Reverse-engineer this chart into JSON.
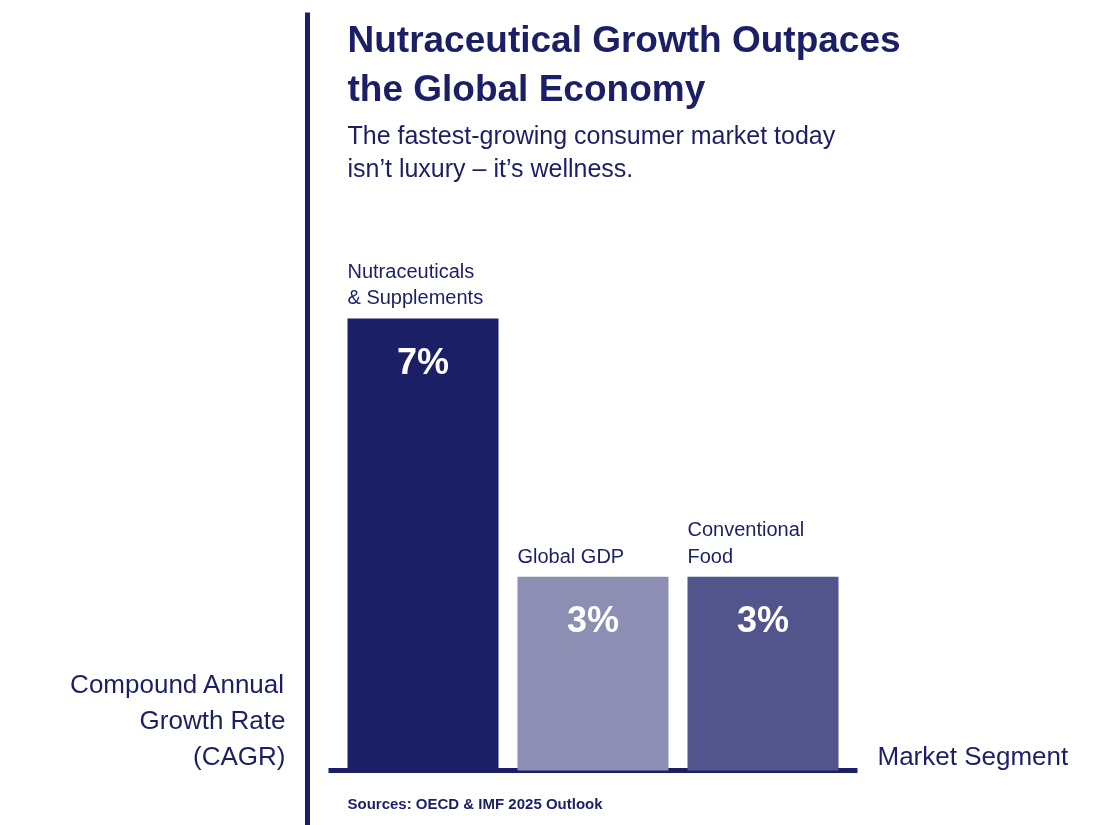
{
  "chart_data": {
    "type": "bar",
    "title": "Nutraceutical Growth Outpaces the Global Economy",
    "subtitle": "The fastest-growing consumer market today isn’t luxury – it’s wellness.",
    "xlabel": "Market Segment",
    "ylabel": "Compound Annual Growth Rate (CAGR)",
    "categories": [
      "Nutraceuticals & Supplements",
      "Global GDP",
      "Conventional Food"
    ],
    "values": [
      7,
      3,
      3
    ],
    "colors": [
      "#1b1f66",
      "#8c8fb3",
      "#52558c"
    ],
    "value_labels": [
      "7%",
      "3%",
      "3%"
    ],
    "annotations": [
      "Sources: OECD & IMF 2025 Outlook"
    ]
  }
}
